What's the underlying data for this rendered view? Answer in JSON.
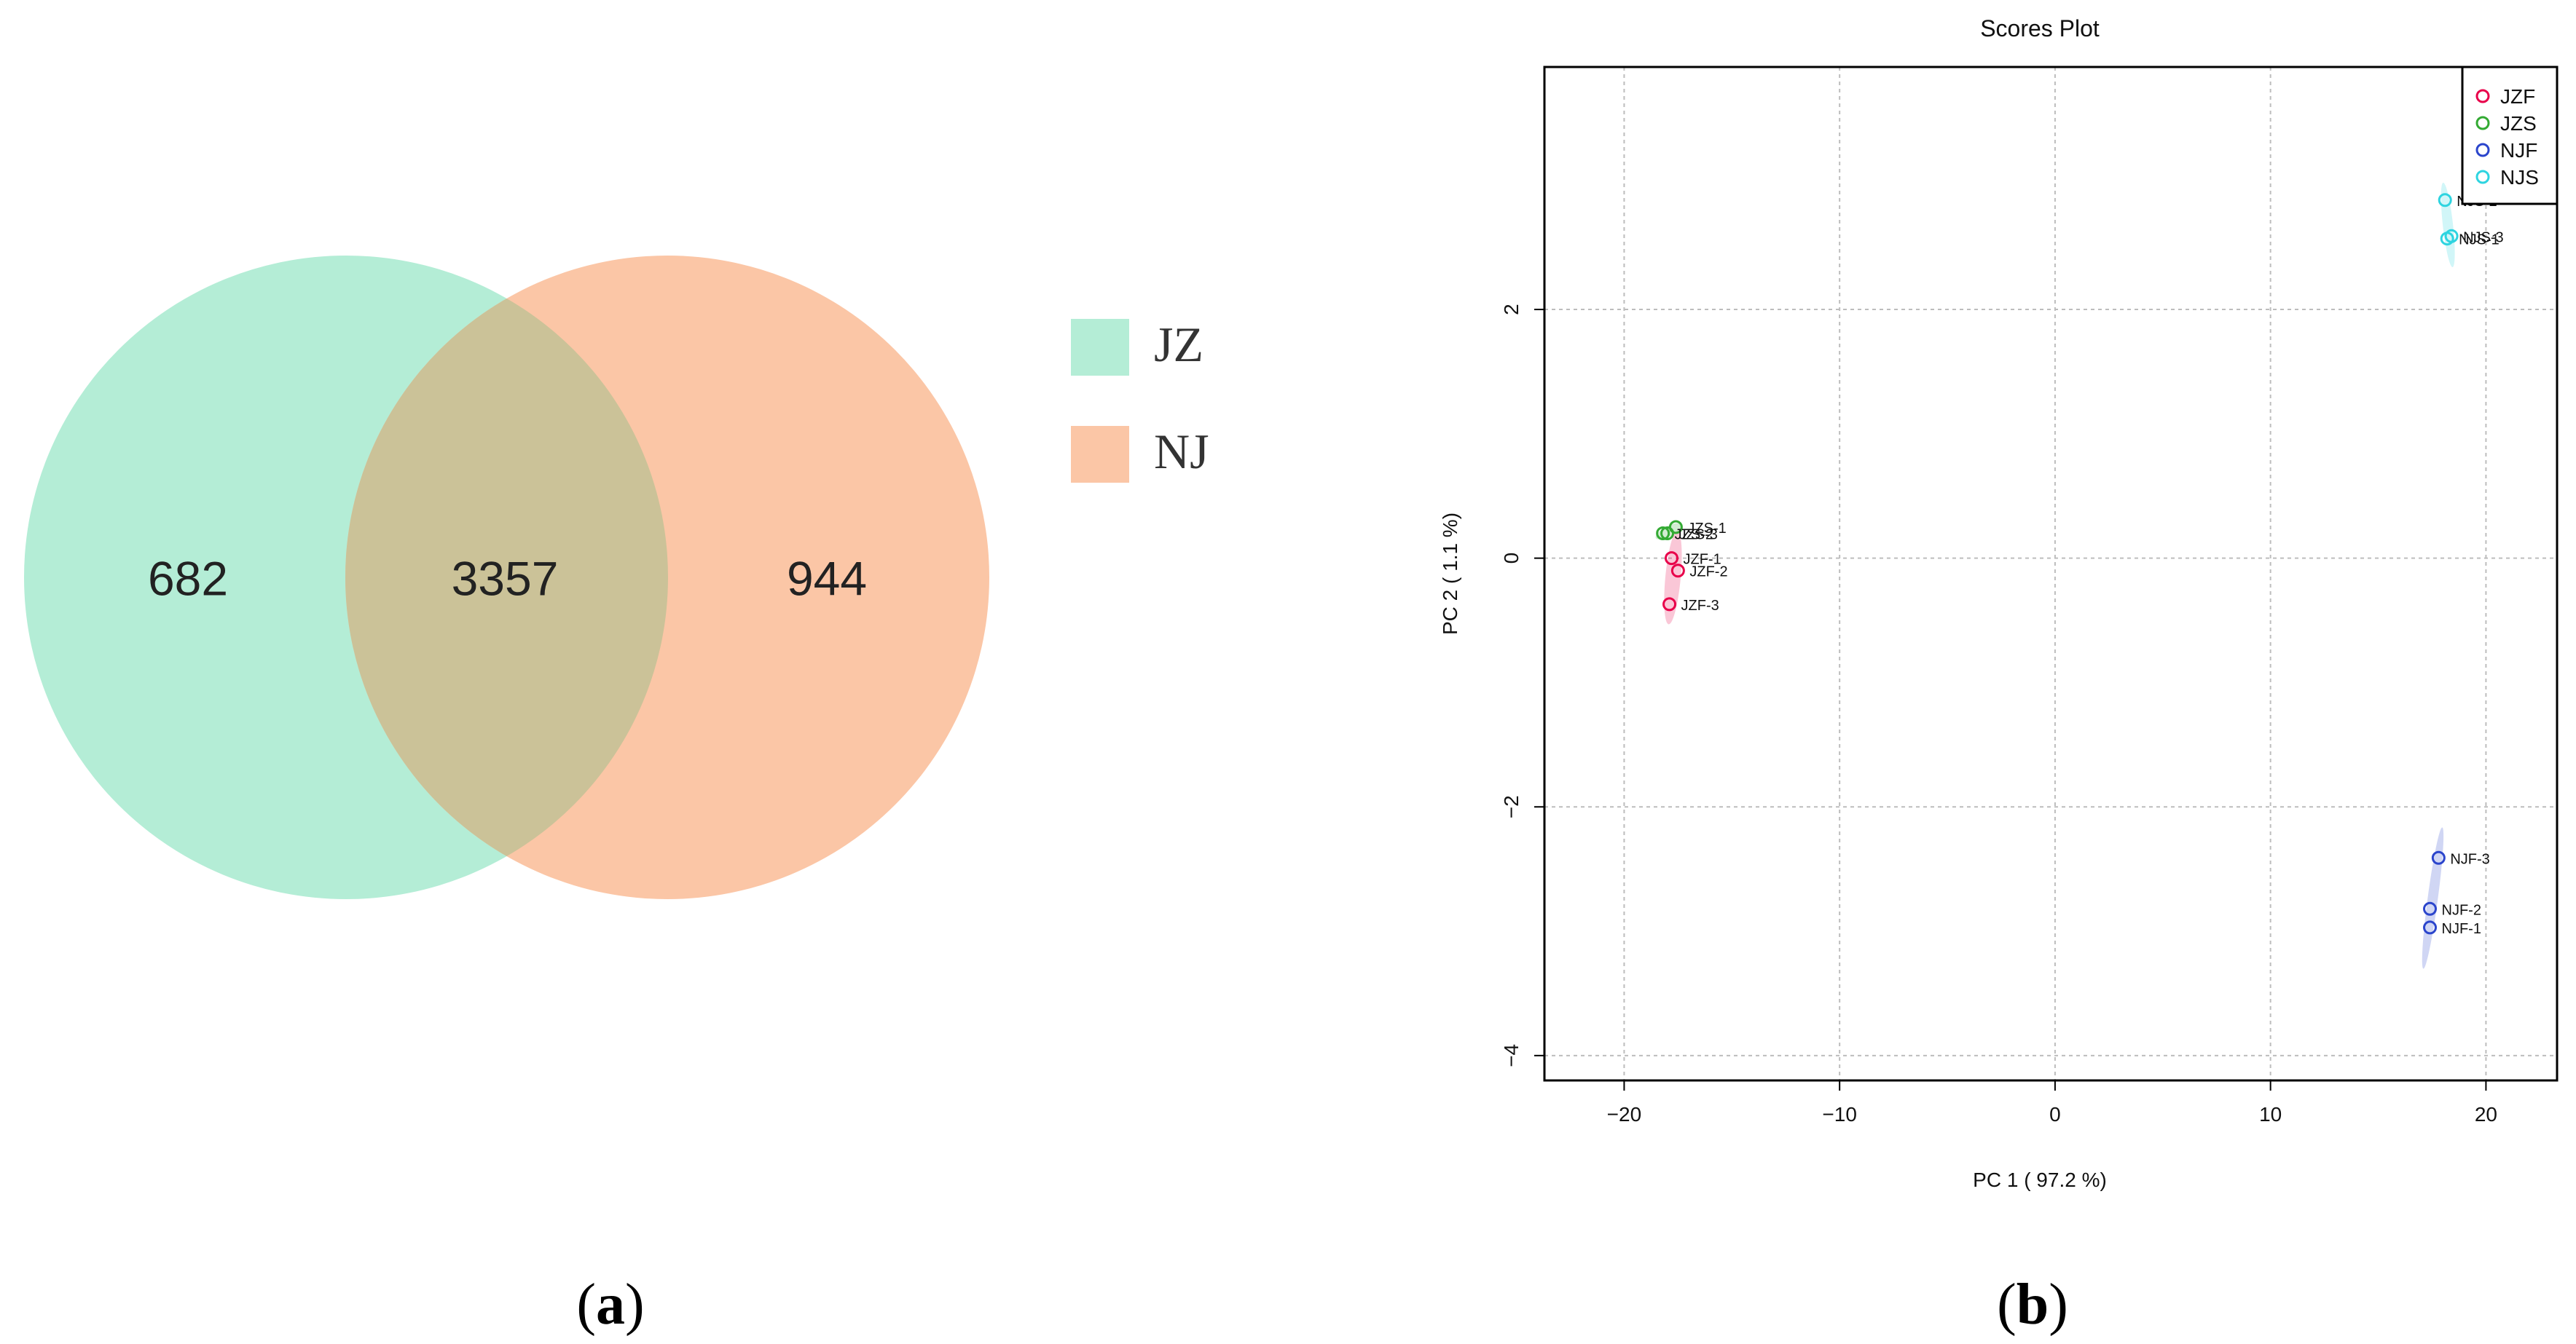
{
  "panel_a": {
    "caption_open": "(",
    "caption_letter": "a",
    "caption_close": ")",
    "sets": [
      {
        "name": "JZ",
        "color": "#b4edd6"
      },
      {
        "name": "NJ",
        "color": "#fbc6a6"
      }
    ],
    "overlap_color": "#cbc298",
    "chart_data": {
      "type": "venn",
      "sets": [
        "JZ",
        "NJ"
      ],
      "only_JZ": 682,
      "intersection": 3357,
      "only_NJ": 944
    },
    "labels": {
      "only_JZ": "682",
      "intersection": "3357",
      "only_NJ": "944"
    }
  },
  "panel_b": {
    "caption_open": "(",
    "caption_letter": "b",
    "caption_close": ")",
    "chart_data": {
      "type": "scatter",
      "title": "Scores Plot",
      "xlabel": "PC 1 ( 97.2 %)",
      "ylabel": "PC 2 ( 1.1 %)",
      "xlim": [
        -23.7,
        23.3
      ],
      "ylim": [
        -4.2,
        3.95
      ],
      "x_ticks": [
        -20,
        -10,
        0,
        10,
        20
      ],
      "y_ticks": [
        -4,
        -2,
        0,
        2
      ],
      "x_tick_labels": [
        "−20",
        "−10",
        "0",
        "10",
        "20"
      ],
      "y_tick_labels": [
        "−4",
        "−2",
        "0",
        "2"
      ],
      "grid": true,
      "legend_position": "top-right",
      "series": [
        {
          "name": "JZF",
          "color": "#e8004a",
          "points": [
            {
              "label": "JZF-1",
              "x": -17.8,
              "y": 0.0
            },
            {
              "label": "JZF-2",
              "x": -17.5,
              "y": -0.1
            },
            {
              "label": "JZF-3",
              "x": -17.9,
              "y": -0.37
            }
          ]
        },
        {
          "name": "JZS",
          "color": "#33aa33",
          "points": [
            {
              "label": "JZS-1",
              "x": -17.6,
              "y": 0.25
            },
            {
              "label": "JZS-2",
              "x": -18.2,
              "y": 0.2
            },
            {
              "label": "JZS-3",
              "x": -18.0,
              "y": 0.2
            }
          ]
        },
        {
          "name": "NJF",
          "color": "#2b45cc",
          "points": [
            {
              "label": "NJF-1",
              "x": 17.4,
              "y": -2.97
            },
            {
              "label": "NJF-2",
              "x": 17.4,
              "y": -2.82
            },
            {
              "label": "NJF-3",
              "x": 17.8,
              "y": -2.41
            }
          ]
        },
        {
          "name": "NJS",
          "color": "#2ed4e0",
          "points": [
            {
              "label": "NJS-1",
              "x": 18.2,
              "y": 2.57
            },
            {
              "label": "NJS-2",
              "x": 18.1,
              "y": 2.88
            },
            {
              "label": "NJS-3",
              "x": 18.4,
              "y": 2.59
            }
          ]
        }
      ]
    }
  }
}
